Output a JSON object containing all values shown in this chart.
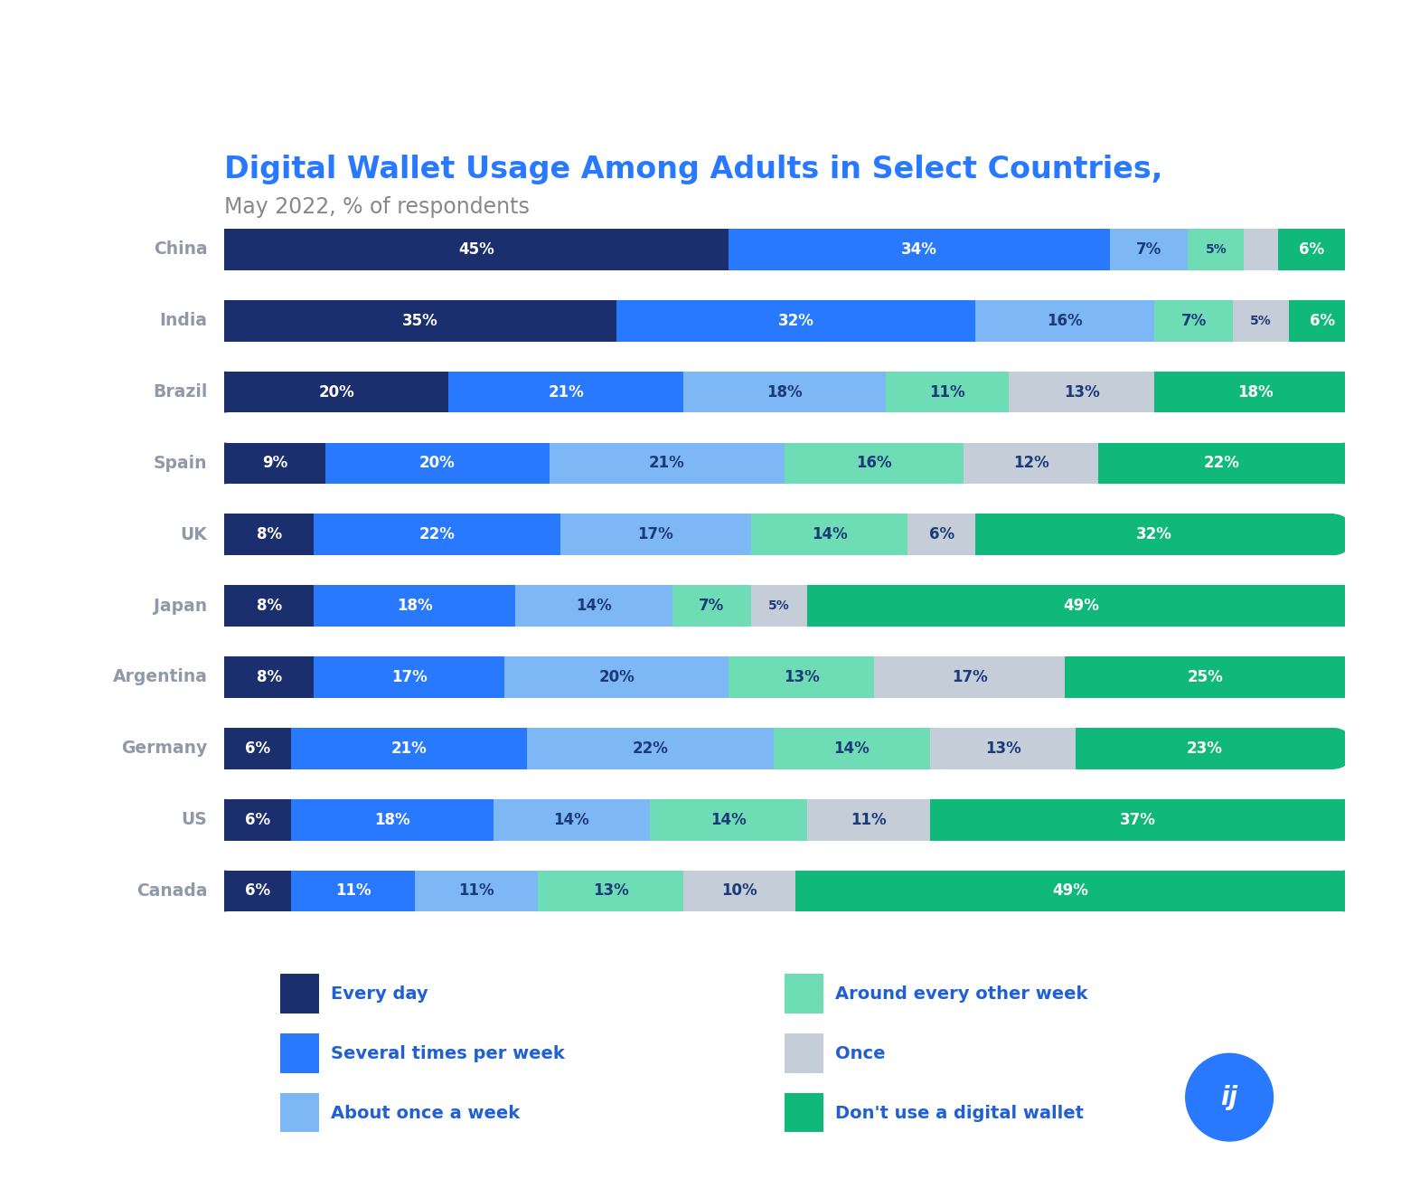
{
  "title": "Digital Wallet Usage Among Adults in Select Countries,",
  "subtitle": "May 2022, % of respondents",
  "title_color": "#2979FF",
  "subtitle_color": "#888888",
  "background_color": "#FFFFFF",
  "countries": [
    "China",
    "India",
    "Brazil",
    "Spain",
    "UK",
    "Japan",
    "Argentina",
    "Germany",
    "US",
    "Canada"
  ],
  "categories": [
    "Every day",
    "Several times per week",
    "About once a week",
    "Around every other week",
    "Once",
    "Don't use a digital wallet"
  ],
  "colors": [
    "#1B2E6E",
    "#2979FF",
    "#7EB7F5",
    "#6EDDB5",
    "#C5CDD8",
    "#10B87A"
  ],
  "data": {
    "China": [
      45,
      34,
      7,
      5,
      3,
      6
    ],
    "India": [
      35,
      32,
      16,
      7,
      5,
      6
    ],
    "Brazil": [
      20,
      21,
      18,
      11,
      13,
      18
    ],
    "Spain": [
      9,
      20,
      21,
      16,
      12,
      22
    ],
    "UK": [
      8,
      22,
      17,
      14,
      6,
      32
    ],
    "Japan": [
      8,
      18,
      14,
      7,
      5,
      49
    ],
    "Argentina": [
      8,
      17,
      20,
      13,
      17,
      25
    ],
    "Germany": [
      6,
      21,
      22,
      14,
      13,
      23
    ],
    "US": [
      6,
      18,
      14,
      14,
      11,
      37
    ],
    "Canada": [
      6,
      11,
      11,
      13,
      10,
      49
    ]
  },
  "label_color_light": "#FFFFFF",
  "label_color_dark": "#1B3A7A",
  "country_label_color": "#9099A8",
  "bar_height": 0.58,
  "legend_items": [
    [
      "#1B2E6E",
      "Every day"
    ],
    [
      "#2979FF",
      "Several times per week"
    ],
    [
      "#7EB7F5",
      "About once a week"
    ],
    [
      "#6EDDB5",
      "Around every other week"
    ],
    [
      "#C5CDD8",
      "Once"
    ],
    [
      "#10B87A",
      "Don't use a digital wallet"
    ]
  ]
}
